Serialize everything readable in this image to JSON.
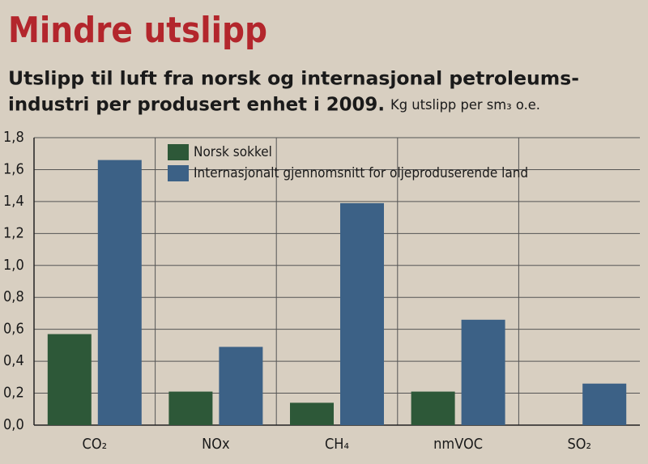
{
  "chart_data": {
    "type": "bar",
    "title": "Mindre utslipp",
    "subtitle": [
      "Utslipp til luft fra norsk og internasjonal petroleums-",
      "industri per produsert enhet i 2009."
    ],
    "unit": "Kg utslipp per sm₃ o.e.",
    "categories": [
      "CO₂",
      "NOx",
      "CH₄",
      "nmVOC",
      "SO₂"
    ],
    "series": [
      {
        "name": "Norsk sokkel",
        "color": "#2d5838",
        "values": [
          0.57,
          0.21,
          0.14,
          0.21,
          0
        ]
      },
      {
        "name": "Internasjonalt gjennomsnitt for oljeproduserende land",
        "color": "#3c6186",
        "values": [
          1.66,
          0.49,
          1.39,
          0.66,
          0.26
        ]
      }
    ],
    "ylim": [
      0,
      1.8
    ],
    "yticks": [
      {
        "value": 0,
        "label": "0,0"
      },
      {
        "value": 0.2,
        "label": "0,2"
      },
      {
        "value": 0.4,
        "label": "0,4"
      },
      {
        "value": 0.6,
        "label": "0,6"
      },
      {
        "value": 0.8,
        "label": "0,8"
      },
      {
        "value": 1,
        "label": "1,0"
      },
      {
        "value": 1.2,
        "label": "1,2"
      },
      {
        "value": 1.4,
        "label": "1,4"
      },
      {
        "value": 1.6,
        "label": "1,6"
      },
      {
        "value": 1.8,
        "label": "1,8"
      }
    ],
    "grid": true,
    "legend": "top-left"
  }
}
